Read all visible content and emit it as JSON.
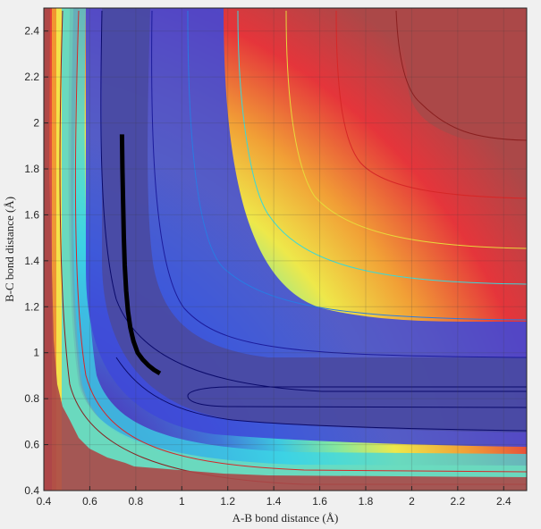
{
  "chart_data": {
    "type": "heatmap",
    "title": "",
    "xlabel": "A-B bond distance (Å)",
    "ylabel": "B-C bond distance (Å)",
    "xlim": [
      0.4,
      2.5
    ],
    "ylim": [
      0.4,
      2.5
    ],
    "xticks": [
      "0.4",
      "0.6",
      "0.8",
      "1",
      "1.2",
      "1.4",
      "1.6",
      "1.8",
      "2",
      "2.2",
      "2.4"
    ],
    "yticks": [
      "0.4",
      "0.6",
      "0.8",
      "1",
      "1.2",
      "1.4",
      "1.6",
      "1.8",
      "2",
      "2.2",
      "2.4"
    ],
    "grid": true,
    "colormap": "jet (semi-transparent)",
    "colors": {
      "trajectory": "#000000",
      "background": "#f0f0f0",
      "high_energy": "#ab4848",
      "low_energy": "#4a4a9e"
    },
    "series": [
      {
        "type": "line",
        "x": [
          0.74,
          0.742,
          0.745,
          0.748,
          0.752,
          0.758,
          0.766,
          0.776,
          0.79,
          0.808,
          0.83,
          0.855,
          0.88,
          0.905
        ],
        "y": [
          1.95,
          1.8,
          1.65,
          1.5,
          1.38,
          1.27,
          1.18,
          1.11,
          1.05,
          1.0,
          0.97,
          0.945,
          0.925,
          0.91
        ]
      }
    ]
  }
}
